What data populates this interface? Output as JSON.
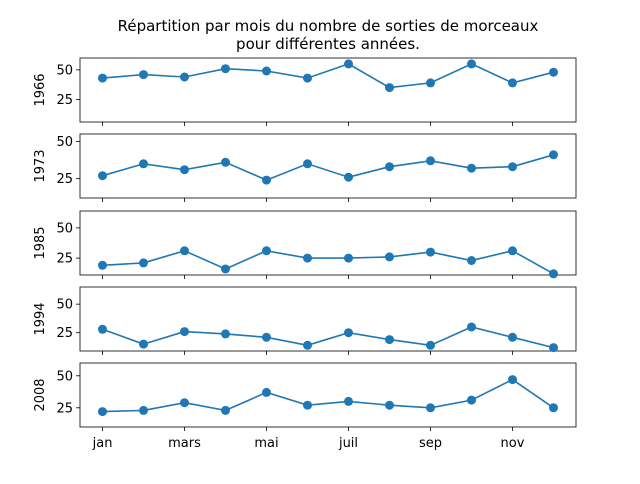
{
  "chart_data": {
    "type": "line",
    "title_line1": "Répartition par mois du nombre de sorties de morceaux",
    "title_line2": "pour différentes années.",
    "x": [
      1,
      2,
      3,
      4,
      5,
      6,
      7,
      8,
      9,
      10,
      11,
      12
    ],
    "x_tick_labels": [
      {
        "x": 1,
        "label": "jan"
      },
      {
        "x": 3,
        "label": "mars"
      },
      {
        "x": 5,
        "label": "mai"
      },
      {
        "x": 7,
        "label": "juil"
      },
      {
        "x": 9,
        "label": "sep"
      },
      {
        "x": 11,
        "label": "nov"
      }
    ],
    "y_ticks": [
      25,
      50
    ],
    "line_color": "#1f77b4",
    "panels": [
      {
        "label": "1966",
        "ylim": [
          6,
          60
        ],
        "values": [
          43,
          46,
          44,
          51,
          49,
          43,
          55,
          35,
          39,
          55,
          39,
          48
        ]
      },
      {
        "label": "1973",
        "ylim": [
          12,
          55
        ],
        "values": [
          27,
          35,
          31,
          36,
          24,
          35,
          26,
          33,
          37,
          32,
          33,
          41
        ]
      },
      {
        "label": "1985",
        "ylim": [
          11,
          64
        ],
        "values": [
          19,
          21,
          31,
          16,
          31,
          25,
          25,
          26,
          30,
          23,
          31,
          12
        ]
      },
      {
        "label": "1994",
        "ylim": [
          9,
          65
        ],
        "values": [
          28,
          15,
          26,
          24,
          21,
          14,
          25,
          19,
          14,
          30,
          21,
          12
        ]
      },
      {
        "label": "2008",
        "ylim": [
          10,
          60
        ],
        "values": [
          22,
          23,
          29,
          23,
          37,
          27,
          30,
          27,
          25,
          31,
          47,
          25
        ]
      }
    ]
  }
}
